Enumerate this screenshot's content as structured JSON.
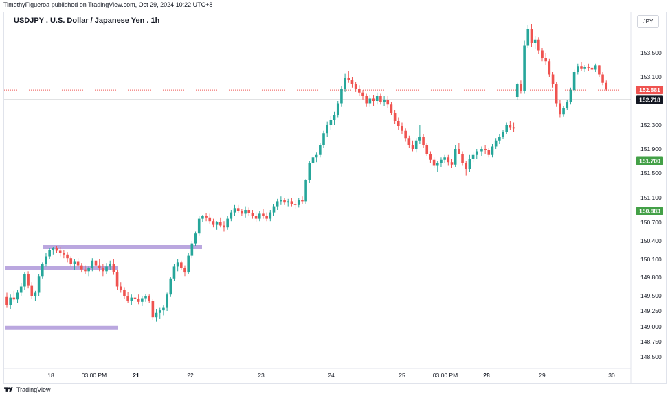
{
  "header": {
    "publisher_line": "TimothyFigueroa published on TradingView.com, Oct 29, 2024 10:22 UTC+8"
  },
  "footer": {
    "brand": "TradingView"
  },
  "chart_data": {
    "type": "candlestick",
    "title": "USDJPY . U.S. Dollar / Japanese Yen . 1h",
    "currency_label": "JPY",
    "colors": {
      "up": "#26a69a",
      "down": "#ef5350",
      "support_line": "#4caf50",
      "support_tag": "#43a047",
      "last_price_tag": "#ef5350",
      "black_line": "#131722",
      "zone": "#b39ddb"
    },
    "ylim": [
      148.3,
      154.05
    ],
    "y_ticks": [
      "153.500",
      "153.100",
      "152.300",
      "151.900",
      "151.500",
      "151.100",
      "150.700",
      "150.400",
      "150.100",
      "149.800",
      "149.500",
      "149.250",
      "149.000",
      "148.750",
      "148.500"
    ],
    "x_ticks": [
      {
        "label": "18",
        "bold": false
      },
      {
        "label": "03:00 PM",
        "bold": false
      },
      {
        "label": "21",
        "bold": true
      },
      {
        "label": "22",
        "bold": false
      },
      {
        "label": "23",
        "bold": false
      },
      {
        "label": "24",
        "bold": false
      },
      {
        "label": "25",
        "bold": false
      },
      {
        "label": "03:00 PM",
        "bold": false
      },
      {
        "label": "28",
        "bold": true
      },
      {
        "label": "29",
        "bold": false
      },
      {
        "label": "30",
        "bold": false
      }
    ],
    "horizontal_lines": [
      {
        "price": 152.881,
        "label": "152.881",
        "style": "dotted",
        "kind": "last_price"
      },
      {
        "price": 152.718,
        "label": "152.718",
        "style": "solid",
        "kind": "black"
      },
      {
        "price": 151.7,
        "label": "151.700",
        "style": "solid",
        "kind": "support"
      },
      {
        "price": 150.883,
        "label": "150.883",
        "style": "solid",
        "kind": "support"
      }
    ],
    "zones": [
      {
        "price": 150.3,
        "from_index": 10,
        "to_index": 53
      },
      {
        "price": 149.96,
        "from_index": 0,
        "to_index": 31
      },
      {
        "price": 148.98,
        "from_index": 0,
        "to_index": 31
      }
    ],
    "ohlc": [
      [
        149.48,
        149.55,
        149.3,
        149.35
      ],
      [
        149.35,
        149.52,
        149.28,
        149.47
      ],
      [
        149.47,
        149.58,
        149.4,
        149.44
      ],
      [
        149.44,
        149.6,
        149.38,
        149.55
      ],
      [
        149.55,
        149.7,
        149.5,
        149.65
      ],
      [
        149.65,
        149.88,
        149.6,
        149.85
      ],
      [
        149.85,
        149.9,
        149.62,
        149.66
      ],
      [
        149.66,
        149.72,
        149.45,
        149.5
      ],
      [
        149.5,
        149.58,
        149.42,
        149.55
      ],
      [
        149.55,
        149.85,
        149.5,
        149.82
      ],
      [
        149.82,
        150.05,
        149.78,
        150.02
      ],
      [
        150.02,
        150.2,
        149.98,
        150.15
      ],
      [
        150.15,
        150.28,
        150.1,
        150.25
      ],
      [
        150.25,
        150.3,
        150.18,
        150.28
      ],
      [
        150.28,
        150.32,
        150.2,
        150.24
      ],
      [
        150.24,
        150.3,
        150.15,
        150.2
      ],
      [
        150.2,
        150.25,
        150.12,
        150.18
      ],
      [
        150.18,
        150.22,
        150.05,
        150.12
      ],
      [
        150.12,
        150.15,
        149.98,
        150.02
      ],
      [
        150.02,
        150.1,
        149.92,
        150.06
      ],
      [
        150.06,
        150.12,
        149.96,
        150.0
      ],
      [
        150.0,
        150.04,
        149.88,
        149.93
      ],
      [
        149.93,
        150.0,
        149.85,
        149.9
      ],
      [
        149.9,
        149.98,
        149.82,
        149.95
      ],
      [
        149.95,
        150.12,
        149.9,
        150.08
      ],
      [
        150.08,
        150.15,
        149.96,
        150.0
      ],
      [
        150.0,
        150.1,
        149.9,
        149.96
      ],
      [
        149.96,
        150.02,
        149.82,
        149.9
      ],
      [
        149.9,
        150.04,
        149.85,
        149.98
      ],
      [
        149.98,
        150.08,
        149.92,
        150.03
      ],
      [
        150.03,
        150.1,
        149.84,
        149.89
      ],
      [
        149.89,
        149.92,
        149.6,
        149.65
      ],
      [
        149.65,
        149.72,
        149.55,
        149.6
      ],
      [
        149.6,
        149.64,
        149.45,
        149.5
      ],
      [
        149.5,
        149.56,
        149.38,
        149.42
      ],
      [
        149.42,
        149.52,
        149.35,
        149.47
      ],
      [
        149.47,
        149.55,
        149.4,
        149.45
      ],
      [
        149.45,
        149.52,
        149.36,
        149.4
      ],
      [
        149.4,
        149.5,
        149.33,
        149.46
      ],
      [
        149.46,
        149.53,
        149.4,
        149.49
      ],
      [
        149.49,
        149.52,
        149.38,
        149.42
      ],
      [
        149.42,
        149.45,
        149.1,
        149.15
      ],
      [
        149.15,
        149.28,
        149.08,
        149.22
      ],
      [
        149.22,
        149.3,
        149.12,
        149.26
      ],
      [
        149.26,
        149.34,
        149.18,
        149.3
      ],
      [
        149.3,
        149.55,
        149.25,
        149.52
      ],
      [
        149.52,
        149.8,
        149.48,
        149.78
      ],
      [
        149.78,
        150.02,
        149.74,
        149.98
      ],
      [
        149.98,
        150.1,
        149.9,
        150.05
      ],
      [
        150.05,
        150.08,
        149.92,
        149.96
      ],
      [
        149.96,
        150.0,
        149.82,
        149.88
      ],
      [
        149.88,
        150.2,
        149.85,
        150.16
      ],
      [
        150.16,
        150.4,
        150.12,
        150.36
      ],
      [
        150.36,
        150.55,
        150.32,
        150.52
      ],
      [
        150.52,
        150.8,
        150.48,
        150.76
      ],
      [
        150.76,
        150.82,
        150.7,
        150.8
      ],
      [
        150.8,
        150.85,
        150.72,
        150.78
      ],
      [
        150.78,
        150.84,
        150.68,
        150.72
      ],
      [
        150.72,
        150.76,
        150.62,
        150.66
      ],
      [
        150.66,
        150.72,
        150.58,
        150.7
      ],
      [
        150.7,
        150.78,
        150.62,
        150.65
      ],
      [
        150.65,
        150.72,
        150.55,
        150.62
      ],
      [
        150.62,
        150.8,
        150.58,
        150.76
      ],
      [
        150.76,
        150.9,
        150.72,
        150.86
      ],
      [
        150.86,
        150.98,
        150.8,
        150.93
      ],
      [
        150.93,
        150.98,
        150.85,
        150.88
      ],
      [
        150.88,
        150.92,
        150.8,
        150.84
      ],
      [
        150.84,
        150.96,
        150.78,
        150.9
      ],
      [
        150.9,
        150.94,
        150.8,
        150.85
      ],
      [
        150.85,
        150.9,
        150.76,
        150.8
      ],
      [
        150.8,
        150.86,
        150.7,
        150.76
      ],
      [
        150.76,
        150.88,
        150.72,
        150.84
      ],
      [
        150.84,
        150.92,
        150.76,
        150.8
      ],
      [
        150.8,
        150.86,
        150.72,
        150.76
      ],
      [
        150.76,
        150.9,
        150.72,
        150.86
      ],
      [
        150.86,
        151.0,
        150.8,
        150.96
      ],
      [
        150.96,
        151.08,
        150.9,
        151.04
      ],
      [
        151.04,
        151.12,
        150.98,
        151.06
      ],
      [
        151.06,
        151.1,
        150.98,
        151.02
      ],
      [
        151.02,
        151.08,
        150.96,
        151.04
      ],
      [
        151.04,
        151.1,
        150.96,
        151.0
      ],
      [
        151.0,
        151.06,
        150.92,
        150.98
      ],
      [
        150.98,
        151.1,
        150.94,
        151.06
      ],
      [
        151.06,
        151.12,
        151.0,
        151.04
      ],
      [
        151.04,
        151.4,
        151.0,
        151.38
      ],
      [
        151.38,
        151.7,
        151.34,
        151.66
      ],
      [
        151.66,
        151.8,
        151.6,
        151.76
      ],
      [
        151.76,
        151.84,
        151.68,
        151.8
      ],
      [
        151.8,
        152.0,
        151.76,
        151.96
      ],
      [
        151.96,
        152.2,
        151.92,
        152.16
      ],
      [
        152.16,
        152.35,
        152.1,
        152.3
      ],
      [
        152.3,
        152.45,
        152.22,
        152.38
      ],
      [
        152.38,
        152.52,
        152.3,
        152.46
      ],
      [
        152.46,
        152.7,
        152.42,
        152.66
      ],
      [
        152.66,
        152.95,
        152.6,
        152.9
      ],
      [
        152.9,
        153.15,
        152.85,
        153.08
      ],
      [
        153.08,
        153.2,
        153.0,
        153.05
      ],
      [
        153.05,
        153.1,
        152.92,
        152.98
      ],
      [
        152.98,
        153.02,
        152.85,
        152.9
      ],
      [
        152.9,
        152.96,
        152.78,
        152.84
      ],
      [
        152.84,
        152.88,
        152.72,
        152.78
      ],
      [
        152.78,
        152.82,
        152.6,
        152.66
      ],
      [
        152.66,
        152.8,
        152.6,
        152.74
      ],
      [
        152.74,
        152.8,
        152.62,
        152.7
      ],
      [
        152.7,
        152.84,
        152.64,
        152.78
      ],
      [
        152.78,
        152.82,
        152.64,
        152.68
      ],
      [
        152.68,
        152.78,
        152.62,
        152.72
      ],
      [
        152.72,
        152.78,
        152.58,
        152.64
      ],
      [
        152.64,
        152.68,
        152.46,
        152.5
      ],
      [
        152.5,
        152.54,
        152.32,
        152.36
      ],
      [
        152.36,
        152.42,
        152.22,
        152.28
      ],
      [
        152.28,
        152.34,
        152.14,
        152.2
      ],
      [
        152.2,
        152.24,
        152.02,
        152.08
      ],
      [
        152.08,
        152.12,
        151.92,
        151.96
      ],
      [
        151.96,
        152.04,
        151.86,
        151.9
      ],
      [
        151.9,
        152.08,
        151.84,
        152.04
      ],
      [
        152.04,
        152.3,
        151.98,
        152.1
      ],
      [
        152.1,
        152.14,
        151.92,
        151.96
      ],
      [
        151.96,
        152.0,
        151.78,
        151.82
      ],
      [
        151.82,
        151.86,
        151.66,
        151.72
      ],
      [
        151.72,
        151.76,
        151.58,
        151.62
      ],
      [
        151.62,
        151.7,
        151.52,
        151.66
      ],
      [
        151.66,
        151.76,
        151.6,
        151.72
      ],
      [
        151.72,
        151.8,
        151.66,
        151.76
      ],
      [
        151.76,
        151.8,
        151.62,
        151.68
      ],
      [
        151.68,
        151.74,
        151.58,
        151.64
      ],
      [
        151.64,
        151.96,
        151.6,
        151.9
      ],
      [
        151.9,
        152.0,
        151.84,
        151.82
      ],
      [
        151.82,
        151.86,
        151.62,
        151.66
      ],
      [
        151.66,
        151.7,
        151.46,
        151.56
      ],
      [
        151.56,
        151.8,
        151.52,
        151.74
      ],
      [
        151.74,
        151.84,
        151.68,
        151.8
      ],
      [
        151.8,
        151.9,
        151.74,
        151.86
      ],
      [
        151.86,
        151.94,
        151.78,
        151.9
      ],
      [
        151.9,
        151.96,
        151.82,
        151.88
      ],
      [
        151.88,
        151.92,
        151.76,
        151.8
      ],
      [
        151.8,
        151.98,
        151.76,
        151.94
      ],
      [
        151.94,
        152.08,
        151.9,
        152.04
      ],
      [
        152.04,
        152.14,
        151.98,
        152.1
      ],
      [
        152.1,
        152.22,
        152.06,
        152.18
      ],
      [
        152.18,
        152.34,
        152.14,
        152.3
      ],
      [
        152.3,
        152.36,
        152.22,
        152.26
      ],
      [
        152.26,
        152.34,
        152.18,
        152.24
      ],
      [
        152.76,
        153.0,
        152.72,
        152.98
      ],
      [
        152.98,
        153.04,
        152.82,
        152.86
      ],
      [
        152.86,
        153.7,
        152.82,
        153.62
      ],
      [
        153.62,
        153.96,
        153.58,
        153.9
      ],
      [
        153.9,
        153.98,
        153.6,
        153.66
      ],
      [
        153.66,
        153.78,
        153.56,
        153.72
      ],
      [
        153.72,
        153.76,
        153.48,
        153.54
      ],
      [
        153.54,
        153.58,
        153.36,
        153.42
      ],
      [
        153.42,
        153.5,
        153.3,
        153.36
      ],
      [
        153.36,
        153.4,
        153.1,
        153.14
      ],
      [
        153.14,
        153.18,
        152.92,
        152.98
      ],
      [
        152.98,
        153.02,
        152.6,
        152.66
      ],
      [
        152.66,
        152.72,
        152.42,
        152.48
      ],
      [
        152.48,
        152.62,
        152.44,
        152.58
      ],
      [
        152.58,
        152.72,
        152.54,
        152.68
      ],
      [
        152.68,
        152.92,
        152.64,
        152.88
      ],
      [
        152.88,
        153.22,
        152.84,
        153.18
      ],
      [
        153.18,
        153.32,
        153.14,
        153.28
      ],
      [
        153.28,
        153.34,
        153.2,
        153.24
      ],
      [
        153.24,
        153.3,
        153.18,
        153.27
      ],
      [
        153.27,
        153.32,
        153.2,
        153.25
      ],
      [
        153.25,
        153.3,
        153.18,
        153.22
      ],
      [
        153.22,
        153.32,
        153.18,
        153.29
      ],
      [
        153.29,
        153.3,
        153.1,
        153.14
      ],
      [
        153.14,
        153.18,
        152.96,
        153.0
      ],
      [
        153.0,
        153.04,
        152.86,
        152.89
      ]
    ],
    "gap_after_index": 132
  }
}
